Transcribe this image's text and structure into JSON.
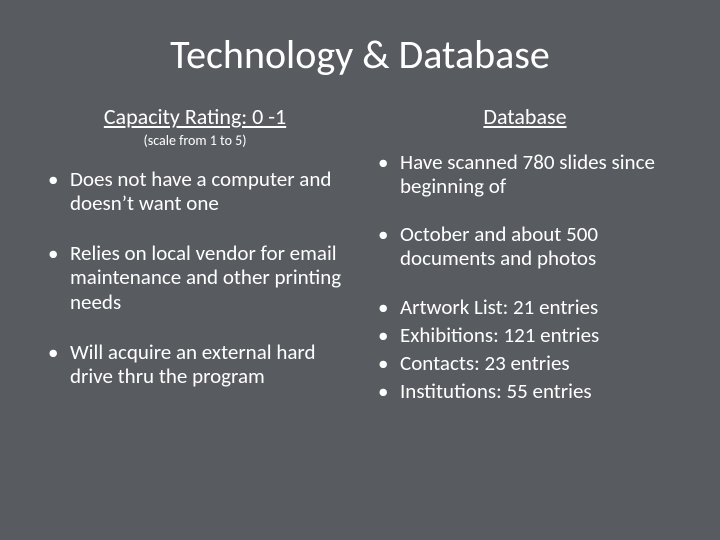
{
  "slide": {
    "background_color": "#585b60",
    "text_color": "#ffffff",
    "title_fontsize": 40,
    "header_fontsize": 22,
    "subheader_fontsize": 14,
    "body_fontsize": 21,
    "title": "Technology & Database",
    "left": {
      "header": "Capacity Rating: 0 -1",
      "subheader": "(scale from 1 to 5)",
      "bullets": [
        "Does not have a computer and doesn’t want one",
        "Relies on local vendor for email maintenance and other printing needs",
        "Will acquire an external hard drive thru the program"
      ]
    },
    "right": {
      "header": "Database",
      "bullets": [
        "Have scanned 780 slides since beginning of",
        "October and about 500 documents and photos",
        "Artwork List: 21 entries",
        "Exhibitions: 121 entries",
        "Contacts:  23 entries",
        "Institutions: 55 entries"
      ]
    }
  }
}
